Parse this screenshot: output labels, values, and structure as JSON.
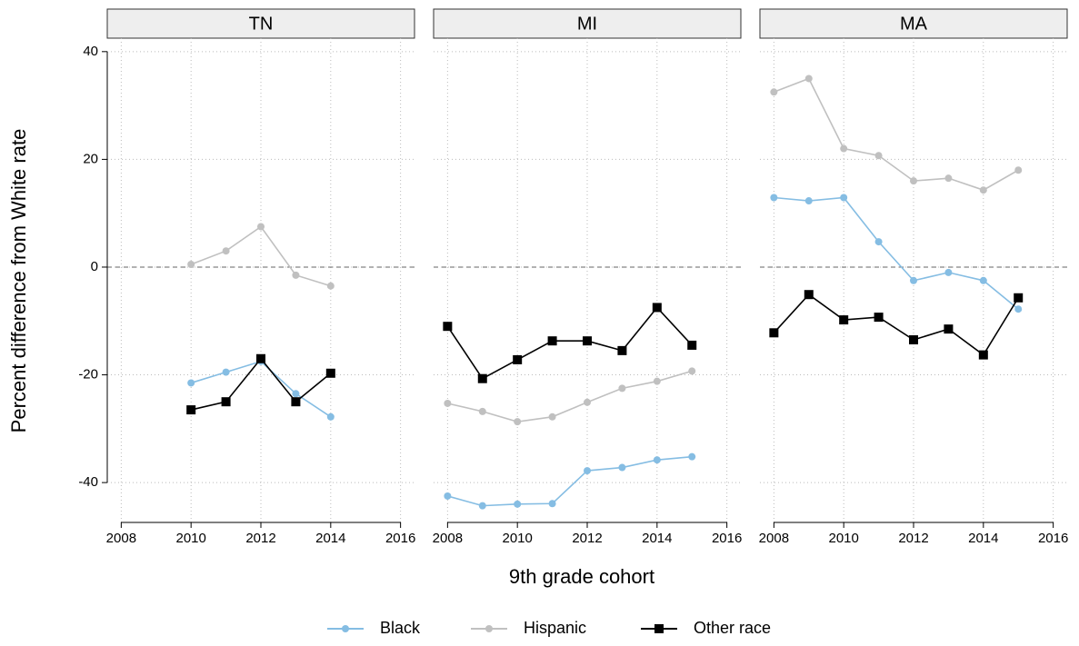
{
  "chart_data": {
    "type": "line",
    "x_label": "9th grade cohort",
    "y_label": "Percent difference from White rate",
    "ylim": [
      -47.4,
      42.5
    ],
    "yticks": [
      -40,
      -20,
      0,
      20,
      40
    ],
    "grid": true,
    "reference_line": 0,
    "legend": "bottom",
    "series": [
      {
        "name": "Black",
        "color": "#85bde3",
        "marker": "circle"
      },
      {
        "name": "Hispanic",
        "color": "#c0c0c0",
        "marker": "circle"
      },
      {
        "name": "Other race",
        "color": "#000000",
        "marker": "square"
      }
    ],
    "panels": [
      {
        "title": "TN",
        "x": [
          2010,
          2011,
          2012,
          2013,
          2014
        ],
        "xlim": [
          2007.6,
          2016.4
        ],
        "xticks": [
          2008,
          2010,
          2012,
          2014,
          2016
        ],
        "values": [
          [
            -21.5,
            -19.5,
            -17.5,
            -23.5,
            -27.8
          ],
          [
            0.5,
            3,
            7.5,
            -1.5,
            -3.5
          ],
          [
            -26.5,
            -25,
            -17,
            -25,
            -19.7
          ]
        ]
      },
      {
        "title": "MI",
        "x": [
          2008,
          2009,
          2010,
          2011,
          2012,
          2013,
          2014,
          2015
        ],
        "xlim": [
          2007.6,
          2016.4
        ],
        "xticks": [
          2008,
          2010,
          2012,
          2014,
          2016
        ],
        "values": [
          [
            -42.5,
            -44.3,
            -44,
            -43.9,
            -37.8,
            -37.2,
            -35.8,
            -35.2
          ],
          [
            -25.3,
            -26.8,
            -28.7,
            -27.8,
            -25.1,
            -22.5,
            -21.2,
            -19.3
          ],
          [
            -11,
            -20.7,
            -17.2,
            -13.7,
            -13.7,
            -15.5,
            -7.5,
            -14.5
          ]
        ]
      },
      {
        "title": "MA",
        "x": [
          2008,
          2009,
          2010,
          2011,
          2012,
          2013,
          2014,
          2015
        ],
        "xlim": [
          2007.6,
          2016.4
        ],
        "xticks": [
          2008,
          2010,
          2012,
          2014,
          2016
        ],
        "values": [
          [
            12.9,
            12.3,
            12.9,
            4.7,
            -2.5,
            -1.0,
            -2.5,
            -7.8
          ],
          [
            32.5,
            35,
            22,
            20.7,
            16,
            16.5,
            14.3,
            18
          ],
          [
            -12.2,
            -5.1,
            -9.8,
            -9.3,
            -13.5,
            -11.5,
            -16.3,
            -5.7
          ]
        ]
      }
    ]
  }
}
